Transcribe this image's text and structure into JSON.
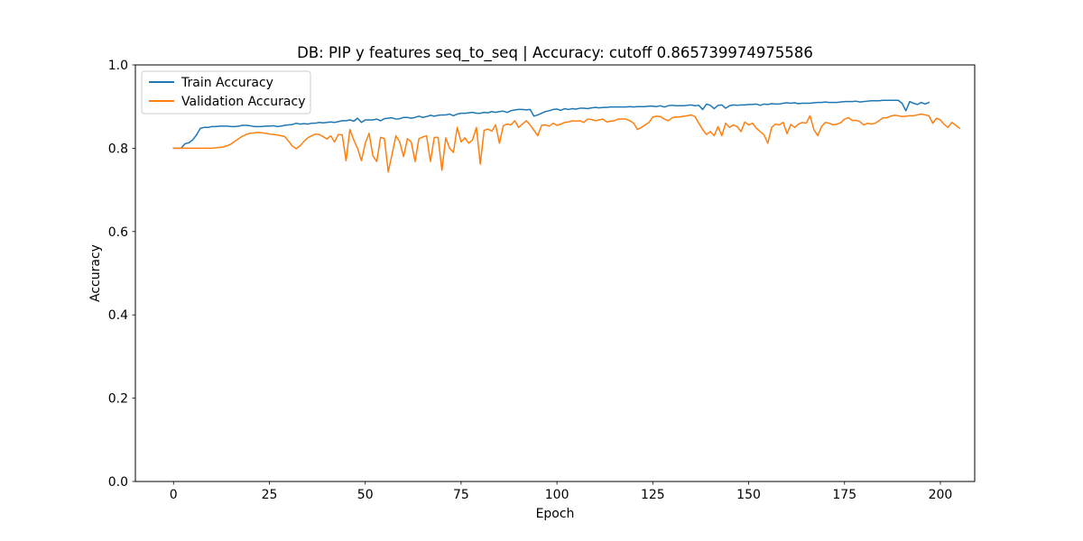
{
  "chart_data": {
    "type": "line",
    "title": "DB: PIP y features seq_to_seq | Accuracy: cutoff 0.865739974975586",
    "xlabel": "Epoch",
    "ylabel": "Accuracy",
    "xlim": [
      -9.95,
      208.95
    ],
    "ylim": [
      0.0,
      1.0
    ],
    "xticks": [
      "0",
      "25",
      "50",
      "75",
      "100",
      "125",
      "150",
      "175",
      "200"
    ],
    "xtick_values": [
      0,
      25,
      50,
      75,
      100,
      125,
      150,
      175,
      200
    ],
    "yticks": [
      "0.0",
      "0.2",
      "0.4",
      "0.6",
      "0.8",
      "1.0"
    ],
    "ytick_values": [
      0.0,
      0.2,
      0.4,
      0.6,
      0.8,
      1.0
    ],
    "grid": false,
    "legend_position": "top-left",
    "series": [
      {
        "name": "Train Accuracy",
        "color": "#1f77b4",
        "values": [
          0.8,
          0.8,
          0.8,
          0.811,
          0.813,
          0.82,
          0.832,
          0.848,
          0.85,
          0.85,
          0.852,
          0.852,
          0.853,
          0.853,
          0.853,
          0.852,
          0.852,
          0.853,
          0.855,
          0.855,
          0.854,
          0.852,
          0.852,
          0.852,
          0.853,
          0.853,
          0.854,
          0.852,
          0.853,
          0.855,
          0.856,
          0.857,
          0.86,
          0.858,
          0.859,
          0.858,
          0.86,
          0.86,
          0.862,
          0.861,
          0.862,
          0.863,
          0.862,
          0.864,
          0.866,
          0.866,
          0.868,
          0.865,
          0.872,
          0.862,
          0.868,
          0.868,
          0.868,
          0.87,
          0.866,
          0.871,
          0.872,
          0.873,
          0.87,
          0.871,
          0.874,
          0.874,
          0.872,
          0.874,
          0.877,
          0.874,
          0.876,
          0.879,
          0.877,
          0.879,
          0.88,
          0.88,
          0.882,
          0.878,
          0.882,
          0.884,
          0.884,
          0.885,
          0.886,
          0.884,
          0.884,
          0.886,
          0.885,
          0.888,
          0.886,
          0.888,
          0.889,
          0.886,
          0.89,
          0.892,
          0.893,
          0.893,
          0.892,
          0.893,
          0.877,
          0.88,
          0.884,
          0.888,
          0.89,
          0.893,
          0.894,
          0.891,
          0.895,
          0.893,
          0.895,
          0.894,
          0.896,
          0.896,
          0.895,
          0.897,
          0.898,
          0.897,
          0.898,
          0.898,
          0.899,
          0.899,
          0.899,
          0.899,
          0.899,
          0.9,
          0.899,
          0.9,
          0.9,
          0.9,
          0.901,
          0.901,
          0.9,
          0.902,
          0.899,
          0.902,
          0.903,
          0.902,
          0.902,
          0.902,
          0.903,
          0.904,
          0.902,
          0.903,
          0.893,
          0.906,
          0.903,
          0.895,
          0.903,
          0.904,
          0.896,
          0.902,
          0.904,
          0.903,
          0.904,
          0.904,
          0.905,
          0.905,
          0.906,
          0.903,
          0.906,
          0.905,
          0.907,
          0.906,
          0.906,
          0.908,
          0.909,
          0.908,
          0.909,
          0.907,
          0.908,
          0.908,
          0.908,
          0.909,
          0.91,
          0.91,
          0.911,
          0.91,
          0.91,
          0.91,
          0.911,
          0.912,
          0.912,
          0.912,
          0.913,
          0.911,
          0.912,
          0.913,
          0.914,
          0.914,
          0.914,
          0.915,
          0.915,
          0.915,
          0.915,
          0.915,
          0.908,
          0.89,
          0.912,
          0.908,
          0.905,
          0.91,
          0.906,
          0.91
        ]
      },
      {
        "name": "Validation Accuracy",
        "color": "#ff7f0e",
        "values": [
          0.8,
          0.8,
          0.8,
          0.8,
          0.8,
          0.8,
          0.8,
          0.8,
          0.8,
          0.8,
          0.8,
          0.801,
          0.802,
          0.803,
          0.806,
          0.81,
          0.817,
          0.823,
          0.829,
          0.833,
          0.836,
          0.837,
          0.838,
          0.837,
          0.836,
          0.834,
          0.833,
          0.832,
          0.83,
          0.828,
          0.817,
          0.805,
          0.799,
          0.806,
          0.816,
          0.825,
          0.83,
          0.834,
          0.833,
          0.828,
          0.822,
          0.83,
          0.815,
          0.833,
          0.832,
          0.77,
          0.845,
          0.82,
          0.8,
          0.77,
          0.812,
          0.836,
          0.782,
          0.768,
          0.826,
          0.823,
          0.743,
          0.786,
          0.83,
          0.815,
          0.78,
          0.823,
          0.815,
          0.768,
          0.823,
          0.827,
          0.83,
          0.768,
          0.826,
          0.826,
          0.747,
          0.825,
          0.8,
          0.79,
          0.85,
          0.815,
          0.825,
          0.812,
          0.82,
          0.85,
          0.762,
          0.843,
          0.846,
          0.841,
          0.856,
          0.812,
          0.854,
          0.858,
          0.856,
          0.866,
          0.85,
          0.858,
          0.866,
          0.856,
          0.843,
          0.83,
          0.855,
          0.856,
          0.853,
          0.86,
          0.855,
          0.858,
          0.862,
          0.863,
          0.866,
          0.865,
          0.866,
          0.862,
          0.87,
          0.869,
          0.866,
          0.868,
          0.87,
          0.863,
          0.865,
          0.866,
          0.87,
          0.87,
          0.87,
          0.866,
          0.86,
          0.845,
          0.85,
          0.856,
          0.862,
          0.875,
          0.877,
          0.876,
          0.87,
          0.866,
          0.873,
          0.875,
          0.875,
          0.877,
          0.878,
          0.88,
          0.876,
          0.86,
          0.845,
          0.833,
          0.84,
          0.83,
          0.852,
          0.83,
          0.86,
          0.85,
          0.856,
          0.852,
          0.84,
          0.863,
          0.856,
          0.86,
          0.848,
          0.84,
          0.832,
          0.812,
          0.85,
          0.858,
          0.856,
          0.862,
          0.835,
          0.857,
          0.85,
          0.858,
          0.862,
          0.86,
          0.878,
          0.845,
          0.83,
          0.852,
          0.862,
          0.86,
          0.856,
          0.858,
          0.861,
          0.87,
          0.873,
          0.867,
          0.867,
          0.864,
          0.856,
          0.86,
          0.858,
          0.86,
          0.866,
          0.873,
          0.873,
          0.877,
          0.879,
          0.878,
          0.876,
          0.877,
          0.878,
          0.878,
          0.88,
          0.882,
          0.88,
          0.878,
          0.86,
          0.872,
          0.868,
          0.857,
          0.85,
          0.862,
          0.855,
          0.848
        ]
      }
    ]
  }
}
